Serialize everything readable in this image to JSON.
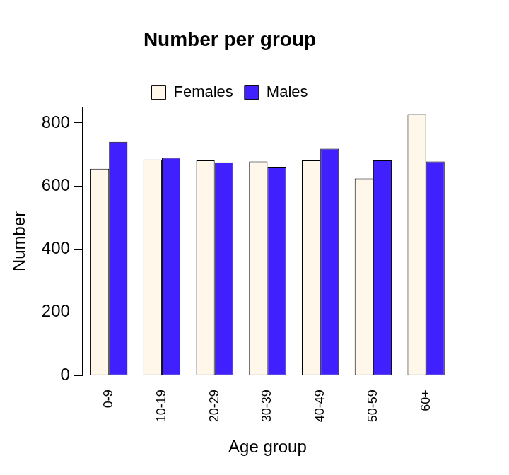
{
  "chart_data": {
    "type": "bar",
    "title": "Number per group",
    "x_label": "Age group",
    "y_label": "Number",
    "categories": [
      "0-9",
      "10-19",
      "20-29",
      "30-39",
      "40-49",
      "50-59",
      "60+"
    ],
    "series": [
      {
        "name": "Females",
        "color": "#fff8ea",
        "values": [
          655,
          684,
          681,
          678,
          681,
          624,
          828
        ]
      },
      {
        "name": "Males",
        "color": "#4020ff",
        "values": [
          740,
          689,
          675,
          661,
          718,
          681,
          678
        ]
      }
    ],
    "ylim": [
      0,
      850
    ],
    "yticks": [
      0,
      200,
      400,
      600,
      800
    ],
    "grid": false,
    "legend": "top"
  }
}
